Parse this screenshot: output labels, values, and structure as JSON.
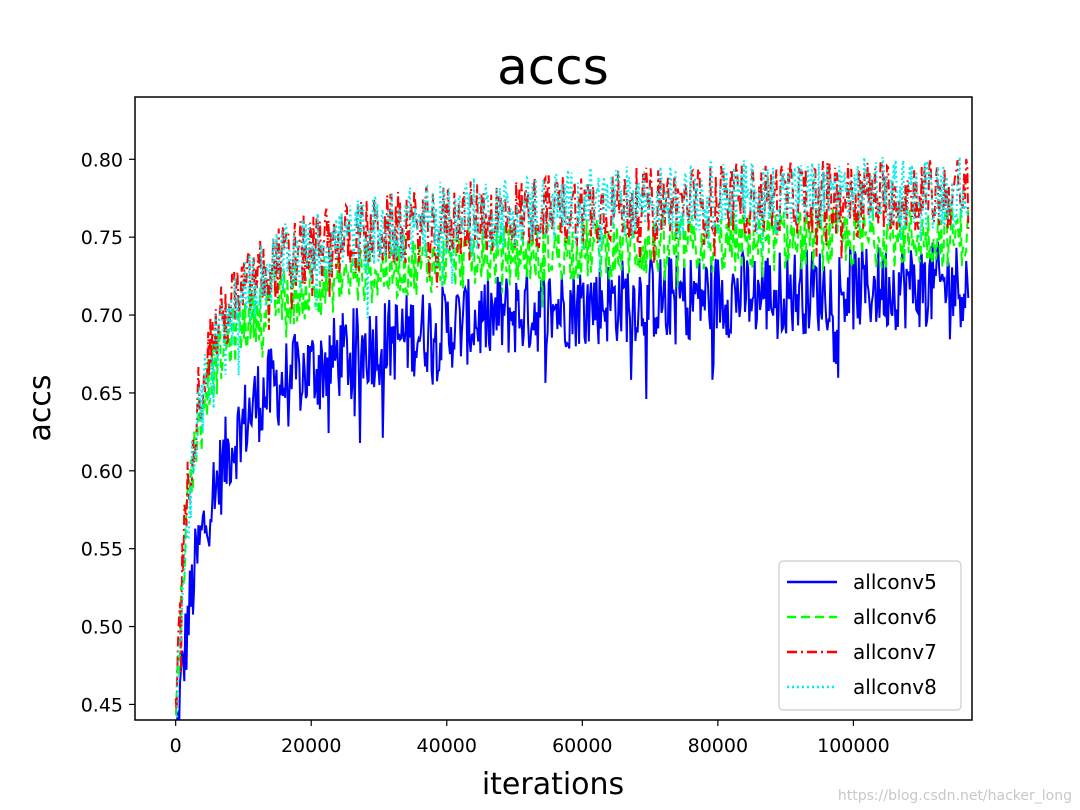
{
  "chart_data": {
    "type": "line",
    "title": "accs",
    "xlabel": "iterations",
    "ylabel": "accs",
    "xlim": [
      -6000,
      117500
    ],
    "ylim": [
      0.44,
      0.84
    ],
    "xticks": [
      0,
      20000,
      40000,
      60000,
      80000,
      100000
    ],
    "yticks": [
      0.45,
      0.5,
      0.55,
      0.6,
      0.65,
      0.7,
      0.75,
      0.8
    ],
    "ytick_labels": [
      "0.45",
      "0.50",
      "0.55",
      "0.60",
      "0.65",
      "0.70",
      "0.75",
      "0.80"
    ],
    "grid": false,
    "legend_position": "lower-right",
    "x": [
      0,
      1000,
      2000,
      3000,
      4000,
      5000,
      6000,
      8000,
      10000,
      12000,
      15000,
      20000,
      25000,
      30000,
      35000,
      40000,
      45000,
      50000,
      55000,
      60000,
      65000,
      70000,
      75000,
      80000,
      85000,
      90000,
      95000,
      100000,
      105000,
      110000,
      117000
    ],
    "series": [
      {
        "name": "allconv5",
        "color": "#0000ff",
        "style": "solid",
        "values": [
          0.42,
          0.47,
          0.51,
          0.54,
          0.56,
          0.58,
          0.59,
          0.615,
          0.63,
          0.645,
          0.655,
          0.665,
          0.675,
          0.682,
          0.688,
          0.692,
          0.697,
          0.701,
          0.704,
          0.707,
          0.709,
          0.711,
          0.712,
          0.713,
          0.714,
          0.715,
          0.716,
          0.717,
          0.718,
          0.719,
          0.72
        ]
      },
      {
        "name": "allconv6",
        "color": "#00ff00",
        "style": "dashed",
        "values": [
          0.44,
          0.53,
          0.59,
          0.62,
          0.645,
          0.66,
          0.668,
          0.685,
          0.695,
          0.703,
          0.71,
          0.717,
          0.723,
          0.728,
          0.732,
          0.735,
          0.737,
          0.739,
          0.741,
          0.742,
          0.743,
          0.744,
          0.745,
          0.746,
          0.747,
          0.748,
          0.748,
          0.749,
          0.75,
          0.75,
          0.751
        ]
      },
      {
        "name": "allconv7",
        "color": "#ff0000",
        "style": "dashdot",
        "values": [
          0.45,
          0.54,
          0.6,
          0.64,
          0.66,
          0.68,
          0.69,
          0.705,
          0.715,
          0.725,
          0.733,
          0.742,
          0.748,
          0.753,
          0.757,
          0.76,
          0.763,
          0.765,
          0.767,
          0.769,
          0.77,
          0.771,
          0.772,
          0.773,
          0.774,
          0.775,
          0.776,
          0.776,
          0.777,
          0.777,
          0.778
        ]
      },
      {
        "name": "allconv8",
        "color": "#00eeee",
        "style": "dotted",
        "values": [
          0.44,
          0.52,
          0.58,
          0.62,
          0.645,
          0.665,
          0.68,
          0.7,
          0.712,
          0.722,
          0.732,
          0.742,
          0.749,
          0.755,
          0.759,
          0.762,
          0.765,
          0.767,
          0.769,
          0.771,
          0.772,
          0.773,
          0.774,
          0.775,
          0.776,
          0.776,
          0.777,
          0.778,
          0.778,
          0.779,
          0.78
        ]
      }
    ]
  },
  "watermark": "https://blog.csdn.net/hacker_long"
}
